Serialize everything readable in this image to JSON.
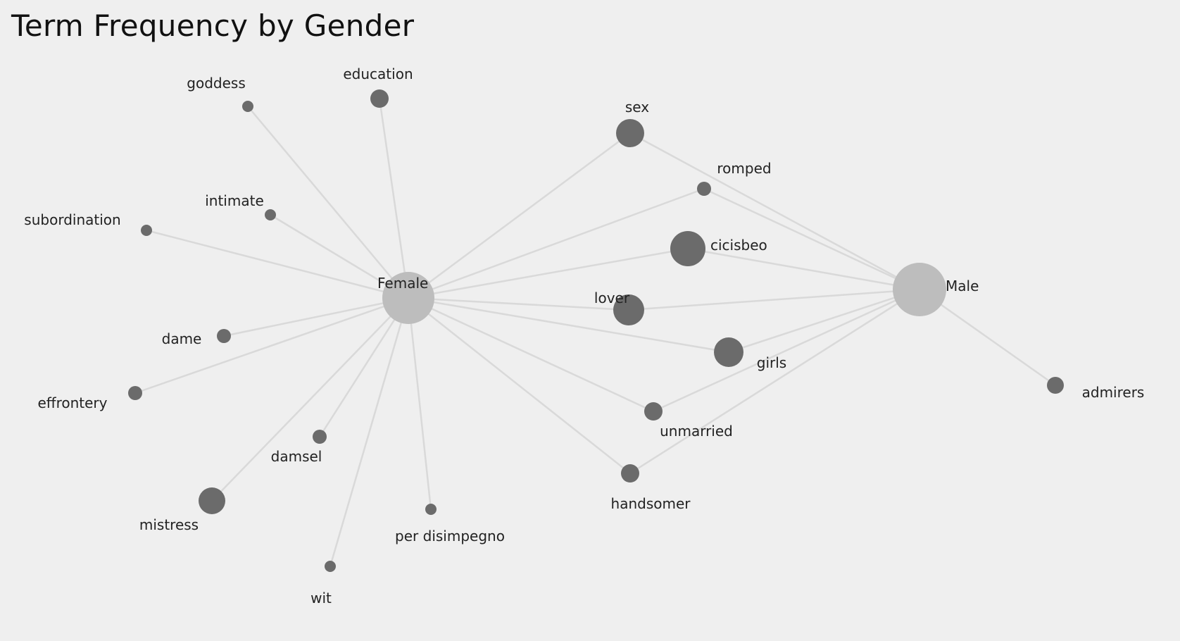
{
  "title": "Term Frequency by Gender",
  "colors": {
    "background": "#efefef",
    "hub": "#bdbdbd",
    "term": "#6b6b6b",
    "edge": "#d9d9d9"
  },
  "nodes": [
    {
      "id": "female",
      "label": "Female",
      "kind": "hub"
    },
    {
      "id": "male",
      "label": "Male",
      "kind": "hub"
    },
    {
      "id": "goddess",
      "label": "goddess",
      "kind": "term"
    },
    {
      "id": "education",
      "label": "education",
      "kind": "term"
    },
    {
      "id": "intimate",
      "label": "intimate",
      "kind": "term"
    },
    {
      "id": "subordination",
      "label": "subordination",
      "kind": "term"
    },
    {
      "id": "dame",
      "label": "dame",
      "kind": "term"
    },
    {
      "id": "effrontery",
      "label": "effrontery",
      "kind": "term"
    },
    {
      "id": "damsel",
      "label": "damsel",
      "kind": "term"
    },
    {
      "id": "mistress",
      "label": "mistress",
      "kind": "term"
    },
    {
      "id": "wit",
      "label": "wit",
      "kind": "term"
    },
    {
      "id": "per-disimpegno",
      "label": "per disimpegno",
      "kind": "term"
    },
    {
      "id": "sex",
      "label": "sex",
      "kind": "term"
    },
    {
      "id": "romped",
      "label": "romped",
      "kind": "term"
    },
    {
      "id": "cicisbeo",
      "label": "cicisbeo",
      "kind": "term"
    },
    {
      "id": "lover",
      "label": "lover",
      "kind": "term"
    },
    {
      "id": "girls",
      "label": "girls",
      "kind": "term"
    },
    {
      "id": "unmarried",
      "label": "unmarried",
      "kind": "term"
    },
    {
      "id": "handsomer",
      "label": "handsomer",
      "kind": "term"
    },
    {
      "id": "admirers",
      "label": "admirers",
      "kind": "term"
    }
  ],
  "edges": [
    [
      "female",
      "goddess"
    ],
    [
      "female",
      "education"
    ],
    [
      "female",
      "intimate"
    ],
    [
      "female",
      "subordination"
    ],
    [
      "female",
      "dame"
    ],
    [
      "female",
      "effrontery"
    ],
    [
      "female",
      "damsel"
    ],
    [
      "female",
      "mistress"
    ],
    [
      "female",
      "wit"
    ],
    [
      "female",
      "per-disimpegno"
    ],
    [
      "female",
      "sex"
    ],
    [
      "female",
      "romped"
    ],
    [
      "female",
      "cicisbeo"
    ],
    [
      "female",
      "lover"
    ],
    [
      "female",
      "girls"
    ],
    [
      "female",
      "unmarried"
    ],
    [
      "female",
      "handsomer"
    ],
    [
      "male",
      "sex"
    ],
    [
      "male",
      "romped"
    ],
    [
      "male",
      "cicisbeo"
    ],
    [
      "male",
      "lover"
    ],
    [
      "male",
      "girls"
    ],
    [
      "male",
      "unmarried"
    ],
    [
      "male",
      "handsomer"
    ],
    [
      "male",
      "admirers"
    ]
  ]
}
